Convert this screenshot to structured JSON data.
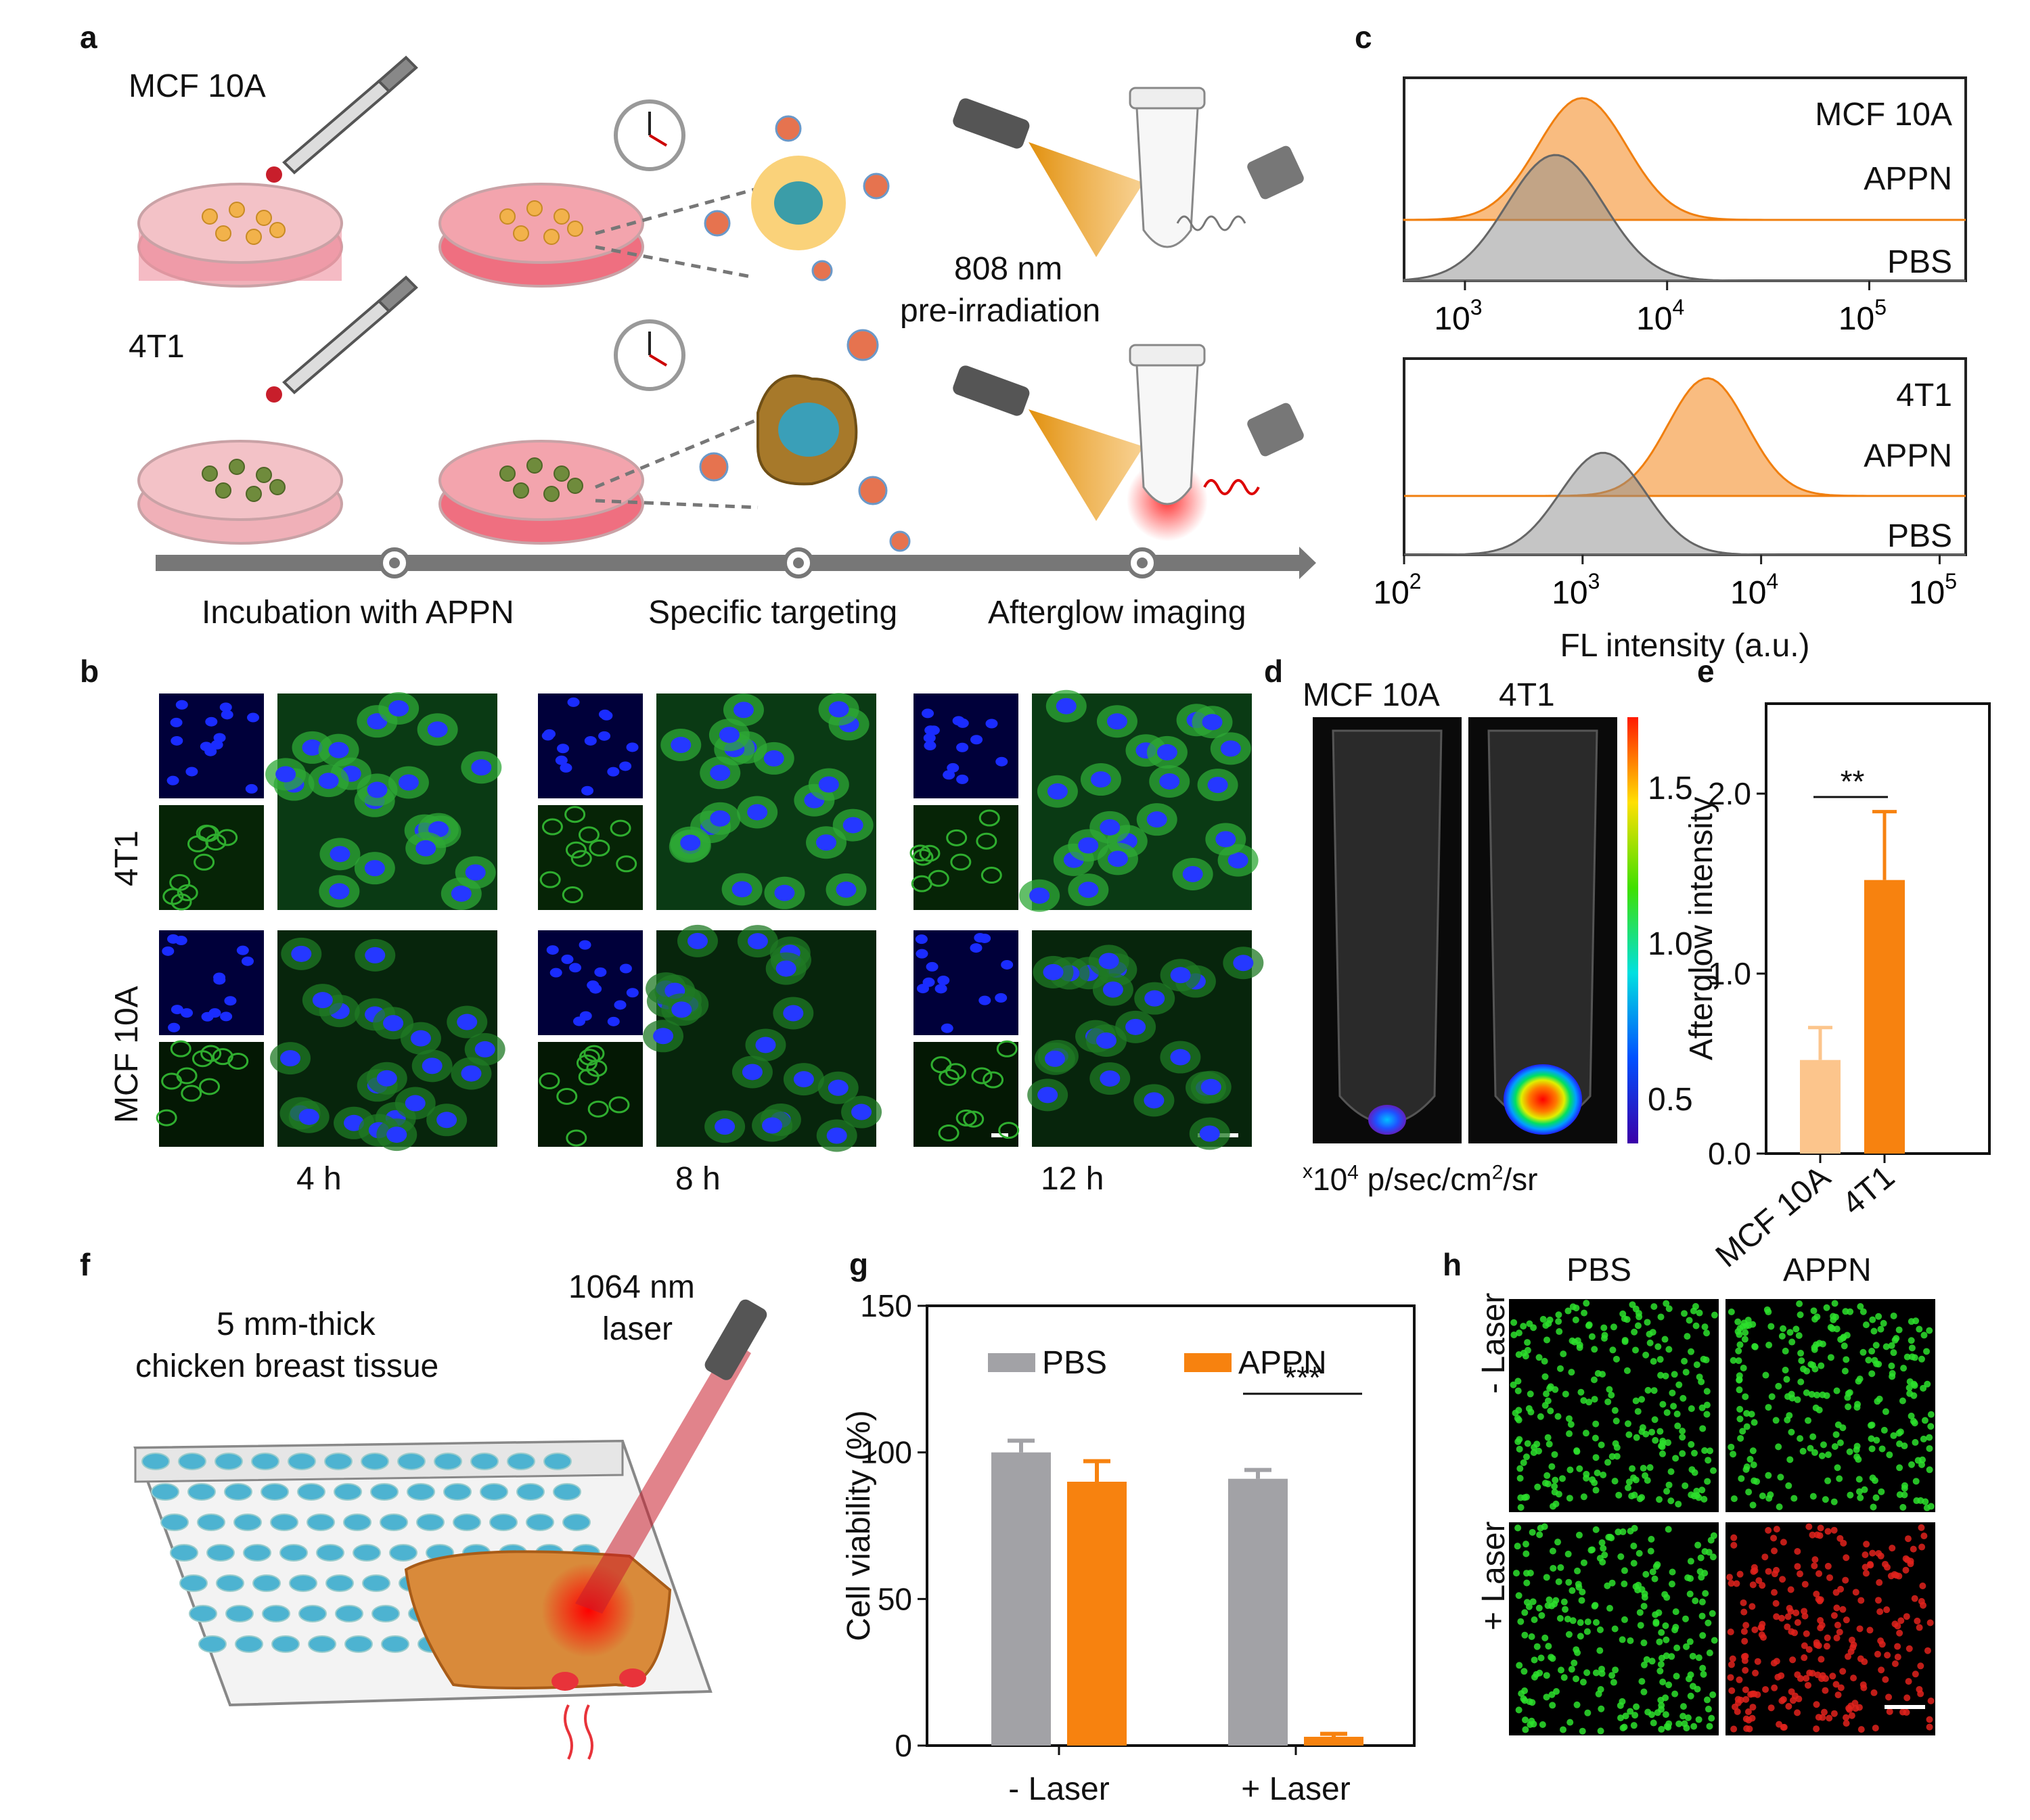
{
  "panels": {
    "a": "a",
    "b": "b",
    "c": "c",
    "d": "d",
    "e": "e",
    "f": "f",
    "g": "g",
    "h": "h"
  },
  "panel_a": {
    "cell_line_top": "MCF 10A",
    "cell_line_bottom": "4T1",
    "laser_label_line1": "808 nm",
    "laser_label_line2": "pre-irradiation",
    "timeline_steps": [
      "Incubation with APPN",
      "Specific targeting",
      "Afterglow imaging"
    ]
  },
  "panel_b": {
    "row_labels": [
      "4T1",
      "MCF 10A"
    ],
    "time_labels": [
      "4 h",
      "8 h",
      "12 h"
    ]
  },
  "panel_d": {
    "tube_labels": [
      "MCF 10A",
      "4T1"
    ],
    "colorbar_ticks": [
      "1.5",
      "1.0",
      "0.5"
    ],
    "unit_prefix": "x",
    "unit_base": "10",
    "unit_exp": "4",
    "unit_mid": " p/sec/cm",
    "unit_exp2": "2",
    "unit_tail": "/sr"
  },
  "panel_f": {
    "tissue_label_line1": "5 mm-thick",
    "tissue_label_line2": "chicken breast tissue",
    "laser_label_line1": "1064 nm",
    "laser_label_line2": "laser"
  },
  "panel_h": {
    "col_labels": [
      "PBS",
      "APPN"
    ],
    "row_labels": [
      "- Laser",
      "+ Laser"
    ]
  },
  "chart_data": [
    {
      "id": "c-top",
      "type": "area",
      "xscale": "log",
      "xlim": [
        500,
        300000
      ],
      "xticks": [
        "10",
        "10",
        "10"
      ],
      "xtick_exps": [
        "3",
        "4",
        "5"
      ],
      "xtick_values": [
        1000,
        10000,
        100000
      ],
      "legend": [
        "MCF 10A",
        "APPN",
        "PBS"
      ],
      "series": [
        {
          "name": "APPN",
          "peak_x": 3800,
          "color": "#f7a04a"
        },
        {
          "name": "PBS",
          "peak_x": 2800,
          "color": "#8c8c8c"
        }
      ]
    },
    {
      "id": "c-bottom",
      "type": "area",
      "xscale": "log",
      "xlim": [
        100,
        140000
      ],
      "xticks": [
        "10",
        "10",
        "10",
        "10"
      ],
      "xtick_exps": [
        "2",
        "3",
        "4",
        "5"
      ],
      "xtick_values": [
        100,
        1000,
        10000,
        100000
      ],
      "xlabel": "FL intensity (a.u.)",
      "legend": [
        "4T1",
        "APPN",
        "PBS"
      ],
      "series": [
        {
          "name": "APPN",
          "peak_x": 5000,
          "color": "#f7a04a"
        },
        {
          "name": "PBS",
          "peak_x": 1300,
          "color": "#8c8c8c"
        }
      ]
    },
    {
      "id": "e",
      "type": "bar",
      "categories": [
        "MCF 10A",
        "4T1"
      ],
      "values": [
        0.52,
        1.52
      ],
      "errors": [
        0.18,
        0.38
      ],
      "colors": [
        "#fcc58c",
        "#f7820f"
      ],
      "ylabel": "Afterglow intensity",
      "ylim": [
        0,
        2.5
      ],
      "yticks": [
        "0.0",
        "1.0",
        "2.0"
      ],
      "ytick_values": [
        0,
        1,
        2
      ],
      "significance": "**"
    },
    {
      "id": "g",
      "type": "bar",
      "categories": [
        "- Laser",
        "+ Laser"
      ],
      "series": [
        {
          "name": "PBS",
          "values": [
            100,
            91
          ],
          "errors": [
            4,
            3
          ],
          "color": "#a2a2a6"
        },
        {
          "name": "APPN",
          "values": [
            90,
            3
          ],
          "errors": [
            7,
            1
          ],
          "color": "#f7820f"
        }
      ],
      "ylabel": "Cell viability (%)",
      "ylim": [
        0,
        150
      ],
      "yticks": [
        "0",
        "50",
        "100",
        "150"
      ],
      "ytick_values": [
        0,
        50,
        100,
        150
      ],
      "significance": "***",
      "legend_position": "top"
    }
  ]
}
